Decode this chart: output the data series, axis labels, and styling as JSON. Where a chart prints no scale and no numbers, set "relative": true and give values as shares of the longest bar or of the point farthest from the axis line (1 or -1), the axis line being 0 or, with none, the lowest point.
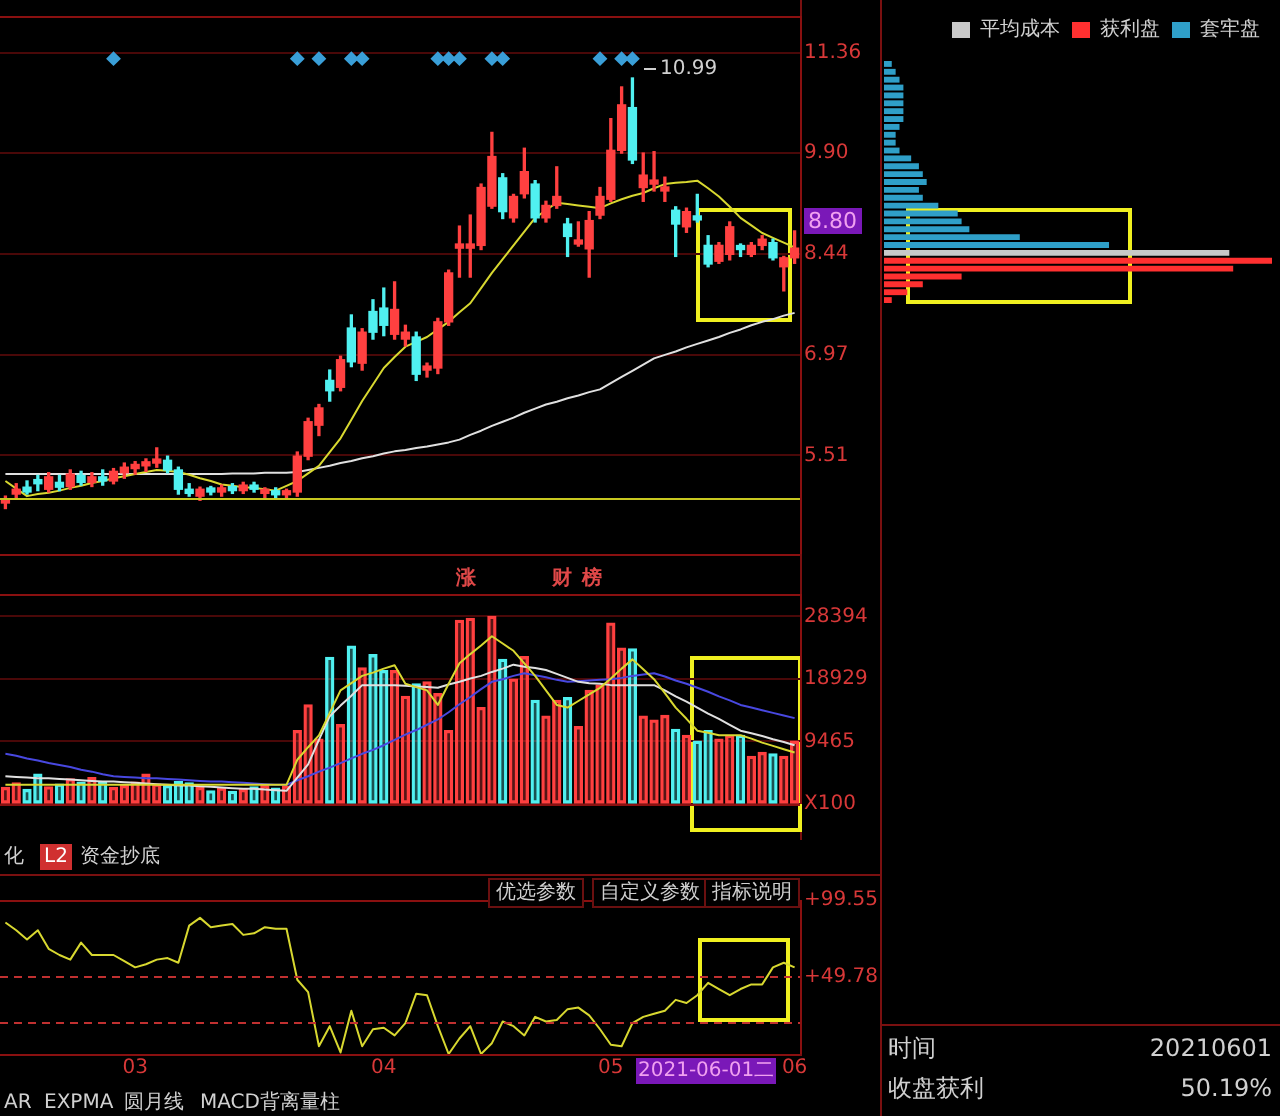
{
  "chart_data": [
    {
      "type": "candlestick",
      "ylim": [
        4.08,
        11.89
      ],
      "yticks": [
        11.36,
        {
          "value": 9.9,
          "label": "9.90"
        },
        8.44,
        6.97,
        5.51
      ],
      "grid": "y",
      "tick_labels": "y",
      "categories": [
        null,
        null,
        null,
        null,
        null,
        null,
        null,
        null,
        null,
        null,
        null,
        null,
        "03",
        null,
        null,
        null,
        null,
        null,
        null,
        null,
        null,
        null,
        null,
        null,
        null,
        null,
        null,
        null,
        null,
        null,
        null,
        null,
        null,
        null,
        null,
        "04",
        null,
        null,
        null,
        null,
        null,
        null,
        null,
        null,
        null,
        null,
        null,
        null,
        null,
        null,
        null,
        null,
        null,
        null,
        null,
        null,
        "05",
        null,
        null,
        null,
        null,
        null,
        null,
        null,
        null,
        null,
        null,
        null,
        null,
        null,
        null,
        null,
        null,
        "06"
      ],
      "series": [
        {
          "type": "line",
          "color": "#d8d830",
          "values": [
            5.14,
            5.03,
            4.92,
            4.95,
            4.97,
            5.0,
            5.04,
            5.07,
            5.11,
            5.14,
            5.18,
            5.21,
            5.24,
            5.27,
            5.3,
            5.29,
            5.27,
            5.23,
            5.18,
            5.14,
            5.09,
            5.07,
            5.05,
            5.04,
            5.02,
            5.0,
            5.07,
            5.14,
            5.25,
            5.36,
            5.56,
            5.76,
            6.03,
            6.3,
            6.54,
            6.78,
            6.94,
            7.09,
            7.16,
            7.23,
            7.34,
            7.45,
            7.59,
            7.72,
            7.94,
            8.16,
            8.36,
            8.56,
            8.76,
            8.96,
            9.07,
            9.18,
            9.16,
            9.14,
            9.12,
            9.1,
            9.17,
            9.23,
            9.28,
            9.32,
            9.39,
            9.45,
            9.47,
            9.48,
            9.5,
            9.39,
            9.27,
            9.12,
            8.96,
            8.85,
            8.74,
            8.67,
            8.6,
            8.53
          ]
        },
        {
          "type": "line",
          "color": "#e0e0e0",
          "values": [
            5.24,
            5.24,
            5.24,
            5.24,
            5.24,
            5.24,
            5.24,
            5.24,
            5.24,
            5.24,
            5.24,
            5.24,
            5.24,
            5.24,
            5.24,
            5.24,
            5.24,
            5.24,
            5.24,
            5.24,
            5.24,
            5.25,
            5.25,
            5.25,
            5.26,
            5.26,
            5.26,
            5.27,
            5.3,
            5.33,
            5.36,
            5.4,
            5.43,
            5.47,
            5.5,
            5.54,
            5.57,
            5.59,
            5.62,
            5.64,
            5.67,
            5.7,
            5.74,
            5.81,
            5.87,
            5.94,
            6.0,
            6.06,
            6.13,
            6.19,
            6.25,
            6.29,
            6.34,
            6.38,
            6.43,
            6.47,
            6.56,
            6.65,
            6.74,
            6.83,
            6.92,
            6.97,
            7.02,
            7.08,
            7.13,
            7.18,
            7.23,
            7.29,
            7.34,
            7.4,
            7.45,
            7.49,
            7.54,
            7.58
          ]
        },
        {
          "type": "scatter",
          "marker": "diamond",
          "color": "#3a9fd8",
          "values": [
            null,
            null,
            null,
            null,
            null,
            null,
            null,
            null,
            null,
            null,
            11.27,
            null,
            null,
            null,
            null,
            null,
            null,
            null,
            null,
            null,
            null,
            null,
            null,
            null,
            null,
            null,
            null,
            11.27,
            null,
            11.27,
            null,
            null,
            11.27,
            11.27,
            null,
            null,
            null,
            null,
            null,
            null,
            11.27,
            11.27,
            11.27,
            null,
            null,
            11.27,
            11.27,
            null,
            null,
            null,
            null,
            null,
            null,
            null,
            null,
            11.27,
            null,
            11.27,
            11.27,
            null,
            null,
            null,
            null,
            null,
            null,
            null,
            null,
            null,
            null,
            null,
            null,
            null,
            null,
            null
          ]
        },
        {
          "type": "candlestick",
          "colors": [
            "#ff4040",
            "#ff4040",
            "#50f0f0",
            "#50f0f0",
            "#ff4040",
            "#50f0f0",
            "#ff4040",
            "#50f0f0",
            "#ff4040",
            "#50f0f0",
            "#ff4040",
            "#ff4040",
            "#ff4040",
            "#ff4040",
            "#ff4040",
            "#50f0f0",
            "#50f0f0",
            "#50f0f0",
            "#ff4040",
            "#50f0f0",
            "#ff4040",
            "#50f0f0",
            "#ff4040",
            "#50f0f0",
            "#ff4040",
            "#50f0f0",
            "#ff4040",
            "#ff4040",
            "#ff4040",
            "#ff4040",
            "#50f0f0",
            "#ff4040",
            "#50f0f0",
            "#ff4040",
            "#50f0f0",
            "#50f0f0",
            "#ff4040",
            "#ff4040",
            "#50f0f0",
            "#ff4040",
            "#ff4040",
            "#ff4040",
            "#ff4040",
            "#ff4040",
            "#ff4040",
            "#ff4040",
            "#50f0f0",
            "#ff4040",
            "#ff4040",
            "#50f0f0",
            "#ff4040",
            "#ff4040",
            "#50f0f0",
            "#ff4040",
            "#ff4040",
            "#ff4040",
            "#ff4040",
            "#ff4040",
            "#50f0f0",
            "#ff4040",
            "#ff4040",
            "#ff4040",
            "#50f0f0",
            "#ff4040",
            "#50f0f0",
            "#50f0f0",
            "#ff4040",
            "#ff4040",
            "#50f0f0",
            "#ff4040",
            "#ff4040",
            "#50f0f0",
            "#ff4040",
            "#ff4040"
          ],
          "ohlc": [
            [
              4.82,
              4.92,
              4.74,
              4.88
            ],
            [
              4.95,
              5.1,
              4.88,
              5.02
            ],
            [
              5.05,
              5.14,
              4.95,
              4.98
            ],
            [
              5.16,
              5.22,
              5.0,
              5.1
            ],
            [
              5.02,
              5.26,
              4.98,
              5.2
            ],
            [
              5.12,
              5.22,
              5.0,
              5.05
            ],
            [
              5.06,
              5.3,
              5.02,
              5.24
            ],
            [
              5.22,
              5.28,
              5.08,
              5.12
            ],
            [
              5.12,
              5.26,
              5.06,
              5.2
            ],
            [
              5.2,
              5.3,
              5.08,
              5.14
            ],
            [
              5.14,
              5.32,
              5.1,
              5.28
            ],
            [
              5.26,
              5.4,
              5.18,
              5.34
            ],
            [
              5.32,
              5.42,
              5.24,
              5.38
            ],
            [
              5.36,
              5.46,
              5.28,
              5.4
            ],
            [
              5.4,
              5.62,
              5.34,
              5.42
            ],
            [
              5.44,
              5.5,
              5.26,
              5.3
            ],
            [
              5.3,
              5.34,
              4.95,
              5.02
            ],
            [
              5.02,
              5.1,
              4.92,
              4.96
            ],
            [
              4.92,
              5.05,
              4.86,
              5.02
            ],
            [
              5.0,
              5.06,
              4.94,
              4.98
            ],
            [
              4.98,
              5.08,
              4.92,
              5.04
            ],
            [
              5.04,
              5.1,
              4.96,
              5.0
            ],
            [
              5.0,
              5.12,
              4.96,
              5.08
            ],
            [
              5.08,
              5.12,
              4.98,
              5.02
            ],
            [
              4.96,
              5.04,
              4.9,
              5.0
            ],
            [
              4.98,
              5.04,
              4.9,
              4.94
            ],
            [
              4.94,
              5.02,
              4.88,
              4.98
            ],
            [
              4.98,
              5.56,
              4.92,
              5.5
            ],
            [
              5.5,
              6.05,
              5.45,
              6.0
            ],
            [
              5.95,
              6.25,
              5.8,
              6.2
            ],
            [
              6.6,
              6.75,
              6.3,
              6.45
            ],
            [
              6.5,
              6.95,
              6.45,
              6.9
            ],
            [
              7.36,
              7.55,
              6.8,
              6.87
            ],
            [
              6.85,
              7.35,
              6.75,
              7.3
            ],
            [
              7.6,
              7.77,
              7.2,
              7.3
            ],
            [
              7.65,
              7.94,
              7.25,
              7.4
            ],
            [
              7.27,
              8.03,
              7.2,
              7.63
            ],
            [
              7.2,
              7.4,
              7.1,
              7.3
            ],
            [
              7.23,
              7.3,
              6.6,
              6.69
            ],
            [
              6.75,
              6.85,
              6.65,
              6.8
            ],
            [
              6.78,
              7.5,
              6.7,
              7.45
            ],
            [
              7.45,
              8.2,
              7.4,
              8.16
            ],
            [
              8.52,
              8.84,
              8.1,
              8.58
            ],
            [
              8.52,
              9.0,
              8.1,
              8.58
            ],
            [
              8.56,
              9.45,
              8.5,
              9.4
            ],
            [
              9.13,
              10.2,
              9.1,
              9.85
            ],
            [
              9.54,
              9.6,
              8.95,
              9.05
            ],
            [
              8.96,
              9.3,
              8.9,
              9.27
            ],
            [
              9.31,
              9.97,
              9.25,
              9.63
            ],
            [
              9.45,
              9.5,
              8.9,
              8.96
            ],
            [
              8.96,
              9.2,
              8.9,
              9.14
            ],
            [
              9.14,
              9.7,
              9.1,
              9.27
            ],
            [
              8.87,
              8.95,
              8.4,
              8.69
            ],
            [
              8.58,
              8.9,
              8.55,
              8.62
            ],
            [
              8.51,
              9.05,
              8.1,
              8.92
            ],
            [
              9.0,
              9.4,
              8.95,
              9.27
            ],
            [
              9.23,
              10.4,
              9.2,
              9.94
            ],
            [
              9.94,
              10.86,
              9.9,
              10.6
            ],
            [
              10.56,
              10.99,
              9.75,
              9.8
            ],
            [
              9.4,
              9.9,
              9.2,
              9.58
            ],
            [
              9.45,
              9.92,
              9.35,
              9.5
            ],
            [
              9.35,
              9.55,
              9.2,
              9.4
            ],
            [
              9.07,
              9.12,
              8.4,
              8.87
            ],
            [
              8.83,
              9.1,
              8.75,
              9.05
            ],
            [
              8.97,
              9.3,
              8.9,
              8.93
            ],
            [
              8.56,
              8.7,
              8.25,
              8.29
            ],
            [
              8.33,
              8.6,
              8.3,
              8.56
            ],
            [
              8.43,
              8.9,
              8.35,
              8.83
            ],
            [
              8.54,
              8.58,
              8.4,
              8.5
            ],
            [
              8.43,
              8.6,
              8.4,
              8.56
            ],
            [
              8.56,
              8.7,
              8.5,
              8.65
            ],
            [
              8.6,
              8.65,
              8.35,
              8.38
            ],
            [
              8.25,
              8.4,
              7.9,
              8.38
            ],
            [
              8.38,
              8.77,
              8.3,
              8.52
            ]
          ]
        }
      ],
      "ref_lines": [
        {
          "axis": "y",
          "value": 4.88,
          "color": "#c8c820"
        }
      ],
      "annotations": [
        "10.99",
        "8.80"
      ]
    },
    {
      "type": "bar",
      "ylim": [
        0,
        31800
      ],
      "yticks": [
        28394,
        18929,
        9465,
        {
          "value": 0,
          "label": "X100"
        }
      ],
      "grid": "y",
      "tick_labels": "y",
      "categories": [
        null,
        null,
        null,
        null,
        null,
        null,
        null,
        null,
        null,
        null,
        null,
        null,
        "03",
        null,
        null,
        null,
        null,
        null,
        null,
        null,
        null,
        null,
        null,
        null,
        null,
        null,
        null,
        null,
        null,
        null,
        null,
        null,
        null,
        null,
        null,
        "04",
        null,
        null,
        null,
        null,
        null,
        null,
        null,
        null,
        null,
        null,
        null,
        null,
        null,
        null,
        null,
        null,
        null,
        null,
        null,
        null,
        "05",
        null,
        null,
        null,
        null,
        null,
        null,
        null,
        null,
        null,
        null,
        null,
        null,
        null,
        null,
        null,
        null,
        "06"
      ],
      "series": [
        {
          "colors": [
            "#ff4040",
            "#ff4040",
            "#50f0f0",
            "#50f0f0",
            "#ff4040",
            "#50f0f0",
            "#ff4040",
            "#50f0f0",
            "#ff4040",
            "#50f0f0",
            "#ff4040",
            "#ff4040",
            "#ff4040",
            "#ff4040",
            "#ff4040",
            "#50f0f0",
            "#50f0f0",
            "#50f0f0",
            "#ff4040",
            "#50f0f0",
            "#ff4040",
            "#50f0f0",
            "#ff4040",
            "#50f0f0",
            "#ff4040",
            "#50f0f0",
            "#ff4040",
            "#ff4040",
            "#ff4040",
            "#ff4040",
            "#50f0f0",
            "#ff4040",
            "#50f0f0",
            "#ff4040",
            "#50f0f0",
            "#50f0f0",
            "#ff4040",
            "#ff4040",
            "#50f0f0",
            "#ff4040",
            "#ff4040",
            "#ff4040",
            "#ff4040",
            "#ff4040",
            "#ff4040",
            "#ff4040",
            "#50f0f0",
            "#ff4040",
            "#ff4040",
            "#50f0f0",
            "#ff4040",
            "#ff4040",
            "#50f0f0",
            "#ff4040",
            "#ff4040",
            "#ff4040",
            "#ff4040",
            "#ff4040",
            "#50f0f0",
            "#ff4040",
            "#ff4040",
            "#ff4040",
            "#50f0f0",
            "#ff4040",
            "#50f0f0",
            "#50f0f0",
            "#ff4040",
            "#ff4040",
            "#50f0f0",
            "#ff4040",
            "#ff4040",
            "#50f0f0",
            "#ff4040",
            "#ff4040"
          ],
          "values": [
            2500,
            3200,
            2200,
            4500,
            2600,
            3000,
            3800,
            3300,
            4000,
            3300,
            2500,
            2800,
            3300,
            4500,
            3000,
            2800,
            3400,
            3200,
            2500,
            2000,
            2400,
            1900,
            2200,
            2600,
            2800,
            2400,
            2700,
            11100,
            15000,
            9800,
            22200,
            12000,
            23900,
            20600,
            22600,
            20200,
            20200,
            16300,
            18200,
            18500,
            16700,
            11100,
            27800,
            28100,
            14600,
            28400,
            21900,
            18900,
            22300,
            15700,
            13300,
            15700,
            16100,
            11700,
            17200,
            18000,
            27400,
            23600,
            23500,
            13300,
            12700,
            13400,
            11300,
            10400,
            9500,
            11100,
            9800,
            10400,
            10400,
            7200,
            7800,
            7600,
            7200,
            9500
          ]
        },
        {
          "type": "line",
          "color": "#d8d830",
          "values": [
            2900,
            2900,
            2900,
            2900,
            2900,
            2900,
            2900,
            2900,
            2900,
            2900,
            2900,
            2900,
            2900,
            2900,
            2900,
            2900,
            2900,
            2900,
            2900,
            2900,
            2900,
            2900,
            2900,
            2900,
            2900,
            2900,
            2900,
            6700,
            8600,
            10400,
            13800,
            17200,
            18300,
            19400,
            19900,
            20500,
            21000,
            18200,
            17700,
            17200,
            15000,
            18200,
            21300,
            22700,
            24000,
            25400,
            24300,
            23200,
            21300,
            19400,
            17200,
            15000,
            14600,
            15600,
            16600,
            17600,
            19000,
            20500,
            21900,
            20400,
            18900,
            16800,
            14600,
            12900,
            11100,
            10800,
            10400,
            10400,
            10400,
            9900,
            9300,
            8800,
            8300,
            7800
          ]
        },
        {
          "type": "line",
          "color": "#e0e0e0",
          "values": [
            4200,
            4100,
            4000,
            3900,
            3900,
            3800,
            3700,
            3600,
            3500,
            3400,
            3400,
            3300,
            3200,
            3100,
            3000,
            2900,
            2800,
            2800,
            2700,
            2600,
            2500,
            2400,
            2300,
            2300,
            2200,
            2100,
            2000,
            4000,
            6000,
            9700,
            13300,
            14900,
            16400,
            18000,
            18000,
            18000,
            18000,
            17900,
            17800,
            17700,
            17600,
            18100,
            18500,
            19000,
            19400,
            20000,
            20500,
            21100,
            20800,
            20600,
            20300,
            19700,
            19100,
            18500,
            18300,
            18200,
            18000,
            18000,
            18000,
            18000,
            18000,
            17200,
            16300,
            15500,
            14600,
            13700,
            12900,
            12000,
            11100,
            10700,
            10300,
            9800,
            9400,
            8900
          ]
        },
        {
          "type": "line",
          "color": "#4848e0",
          "values": [
            7600,
            7300,
            6900,
            6600,
            6200,
            5900,
            5600,
            5200,
            4900,
            4500,
            4200,
            4100,
            4000,
            3900,
            3900,
            3800,
            3700,
            3600,
            3500,
            3400,
            3400,
            3300,
            3200,
            3100,
            3000,
            2900,
            2900,
            3600,
            4200,
            4900,
            5500,
            6200,
            6900,
            7600,
            8200,
            8900,
            9700,
            10500,
            11200,
            12000,
            12800,
            13900,
            15100,
            16200,
            17400,
            18500,
            18900,
            19400,
            19800,
            19500,
            19200,
            18800,
            18500,
            18600,
            18700,
            18800,
            18900,
            19100,
            19400,
            19600,
            19800,
            19300,
            18700,
            18200,
            17600,
            17000,
            16300,
            15700,
            15000,
            14600,
            14200,
            13800,
            13400,
            13000
          ]
        }
      ],
      "annotations": [
        "涨",
        "财",
        "榜",
        "化",
        "L2",
        "资金抄底"
      ]
    },
    {
      "type": "line",
      "color": "#d8d830",
      "ylim": [
        0,
        99.55
      ],
      "yticks": [
        {
          "value": 99.55,
          "label": "+99.55"
        },
        {
          "value": 49.78,
          "label": "+49.78"
        }
      ],
      "categories": [
        null,
        null,
        null,
        null,
        null,
        null,
        null,
        null,
        null,
        null,
        null,
        null,
        "03",
        null,
        null,
        null,
        null,
        null,
        null,
        null,
        null,
        null,
        null,
        null,
        null,
        null,
        null,
        null,
        null,
        null,
        null,
        null,
        null,
        null,
        null,
        "04",
        null,
        null,
        null,
        null,
        null,
        null,
        null,
        null,
        null,
        null,
        null,
        null,
        null,
        null,
        null,
        null,
        null,
        null,
        null,
        null,
        "05",
        null,
        null,
        null,
        null,
        null,
        null,
        null,
        null,
        null,
        null,
        null,
        null,
        null,
        null,
        null,
        null,
        "06"
      ],
      "values": [
        85,
        80,
        74,
        80,
        68,
        64,
        61,
        72,
        64,
        64,
        64,
        60,
        56,
        58,
        61,
        62,
        59,
        83,
        88,
        82,
        83,
        84,
        77,
        78,
        82,
        81,
        81,
        48,
        40,
        5,
        18,
        1,
        28,
        5,
        16,
        17,
        12,
        20,
        39,
        38,
        18,
        0,
        10,
        18,
        0,
        7,
        21,
        18,
        12,
        24,
        21,
        22,
        29,
        30,
        25,
        16,
        6,
        5,
        20,
        24,
        26,
        28,
        35,
        33,
        38,
        46,
        42,
        38,
        42,
        45,
        45,
        56,
        59,
        56
      ],
      "ref_lines": [
        {
          "axis": "y",
          "value": 49.78,
          "color": "#c03030",
          "line_style": "dashed"
        },
        {
          "axis": "y",
          "value": 20,
          "color": "#c03030",
          "line_style": "dashed"
        }
      ],
      "annotations": [
        "2021-06-01二",
        "优选参数",
        "自定义参数",
        "指标说明",
        "AR",
        "EXPMA",
        "圆月线",
        "MACD背离量柱"
      ]
    },
    {
      "type": "bar",
      "orientation": "horizontal",
      "relative": true,
      "stacked": true,
      "legend": "top right",
      "categories": [
        null,
        null,
        null,
        null,
        null,
        null,
        null,
        null,
        null,
        null,
        null,
        null,
        null,
        null,
        null,
        null,
        null,
        null,
        null,
        null,
        null,
        null,
        null,
        null,
        null,
        null,
        null,
        null,
        null,
        null,
        null
      ],
      "series": [
        {
          "name": "平均成本",
          "color": "#c8c8c8",
          "values": [
            null,
            null,
            null,
            null,
            null,
            null,
            null,
            null,
            null,
            null,
            null,
            null,
            null,
            null,
            null,
            null,
            null,
            null,
            null,
            null,
            null,
            null,
            null,
            null,
            0.89,
            null,
            null,
            null,
            null,
            null,
            null
          ]
        },
        {
          "name": "获利盘",
          "color": "#ff3030",
          "values": [
            null,
            null,
            null,
            null,
            null,
            null,
            null,
            null,
            null,
            null,
            null,
            null,
            null,
            null,
            null,
            null,
            null,
            null,
            null,
            null,
            null,
            null,
            null,
            null,
            null,
            1,
            0.9,
            0.2,
            0.1,
            0.06,
            0.02
          ]
        },
        {
          "name": "套牢盘",
          "color": "#2f9fc8",
          "values": [
            0.02,
            0.03,
            0.04,
            0.05,
            0.05,
            0.05,
            0.05,
            0.05,
            0.04,
            0.03,
            0.03,
            0.04,
            0.07,
            0.09,
            0.1,
            0.11,
            0.09,
            0.1,
            0.14,
            0.19,
            0.2,
            0.22,
            0.35,
            0.58,
            null,
            null,
            null,
            null,
            null,
            null,
            null
          ]
        }
      ]
    },
    {
      "type": "other",
      "annotations": [
        "时间",
        "20210601",
        "收盘获利",
        "50.19%"
      ]
    }
  ]
}
